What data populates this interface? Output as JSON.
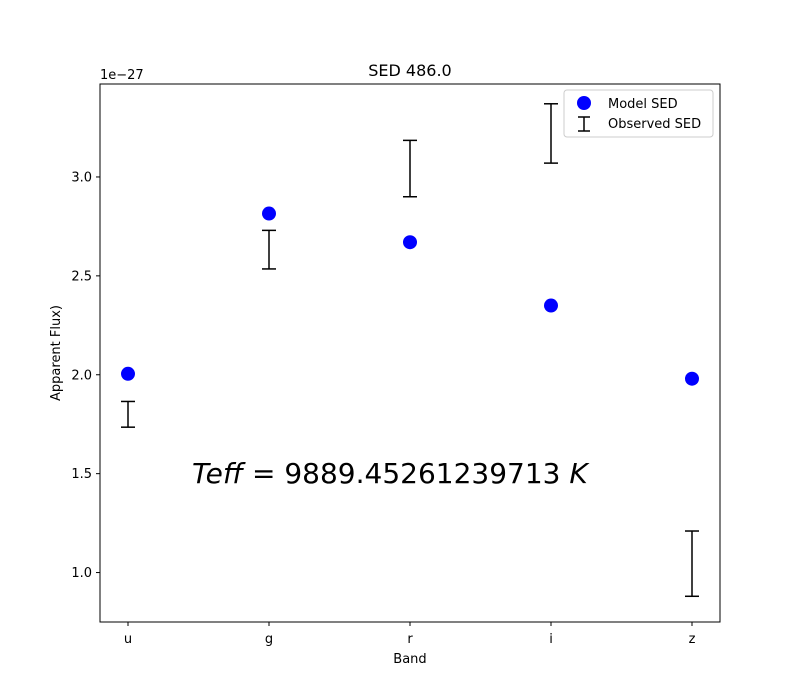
{
  "chart_data": {
    "type": "scatter",
    "title": "SED 486.0",
    "xlabel": "Band",
    "ylabel": "Apparent Flux)",
    "offset_text": "1e−27",
    "categories": [
      "u",
      "g",
      "r",
      "i",
      "z"
    ],
    "ylim": [
      0.75,
      3.47
    ],
    "yticks": [
      {
        "value": 1.0,
        "label": "1.0"
      },
      {
        "value": 1.5,
        "label": "1.5"
      },
      {
        "value": 2.0,
        "label": "2.0"
      },
      {
        "value": 2.5,
        "label": "2.5"
      },
      {
        "value": 3.0,
        "label": "3.0"
      }
    ],
    "series": [
      {
        "name": "Model SED",
        "kind": "marker",
        "color": "#0000ff",
        "values": [
          2.005,
          2.815,
          2.67,
          2.35,
          1.98
        ]
      },
      {
        "name": "Observed SED",
        "kind": "errorbar",
        "color": "#000000",
        "low": [
          1.735,
          2.535,
          2.9,
          3.07,
          0.88
        ],
        "high": [
          1.865,
          2.73,
          3.185,
          3.37,
          1.21
        ]
      }
    ],
    "legend": "top-right",
    "grid": false,
    "annotation": {
      "lhs": "Teff",
      "eq": " = ",
      "value": "9889.45261239713",
      "unit": "K"
    }
  }
}
